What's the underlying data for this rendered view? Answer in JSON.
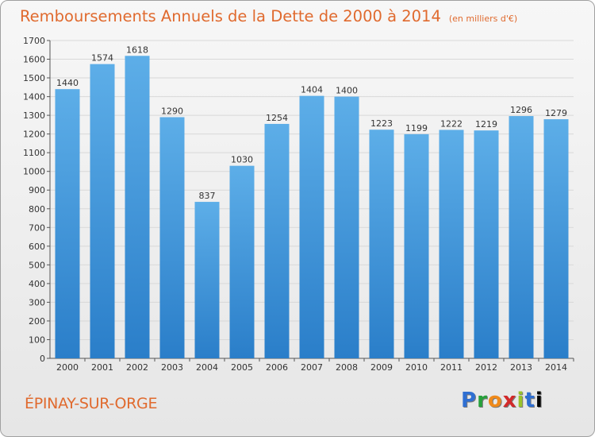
{
  "header": {
    "title": "Remboursements Annuels de la Dette de 2000 à 2014",
    "subtitle": "(en milliers d'€)"
  },
  "footer": {
    "city": "ÉPINAY-SUR-ORGE",
    "logo": [
      "P",
      "r",
      "o",
      "x",
      "i",
      "t",
      "i"
    ],
    "logo_text": "Proxiti"
  },
  "colors": {
    "bar_light": "#5daee8",
    "bar_dark": "#2a7ec9",
    "title": "#e06a2e"
  },
  "chart_data": {
    "type": "bar",
    "title": "Remboursements Annuels de la Dette de 2000 à 2014",
    "ylabel": "en milliers d'€",
    "xlabel": "",
    "categories": [
      "2000",
      "2001",
      "2002",
      "2003",
      "2004",
      "2005",
      "2006",
      "2007",
      "2008",
      "2009",
      "2010",
      "2011",
      "2012",
      "2013",
      "2014"
    ],
    "values": [
      1440,
      1574,
      1618,
      1290,
      837,
      1030,
      1254,
      1404,
      1400,
      1223,
      1199,
      1222,
      1219,
      1296,
      1279
    ],
    "ylim": [
      0,
      1700
    ],
    "yticks": [
      0,
      100,
      200,
      300,
      400,
      500,
      600,
      700,
      800,
      900,
      1000,
      1100,
      1200,
      1300,
      1400,
      1500,
      1600,
      1700
    ],
    "grid": true
  }
}
